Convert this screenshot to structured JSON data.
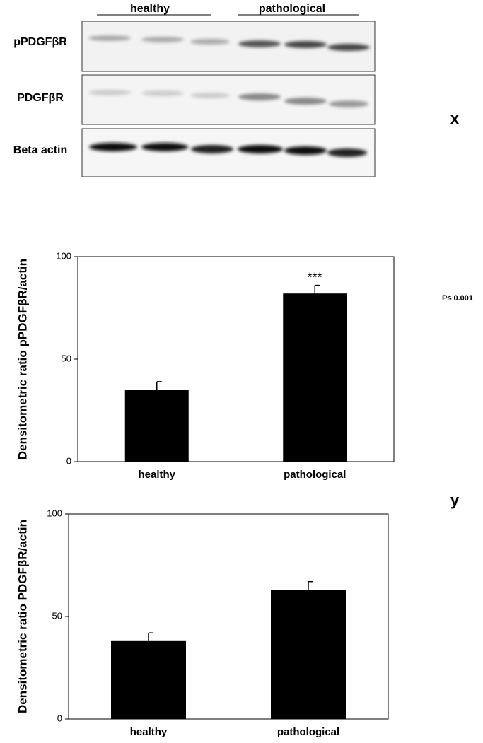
{
  "blot": {
    "groups": [
      "healthy",
      "pathological"
    ],
    "rows": [
      "pPDGFβR",
      "PDGFβR",
      "Beta actin"
    ]
  },
  "panel_labels": [
    "x",
    "y"
  ],
  "note": "P≤ 0.001",
  "chart_data": [
    {
      "type": "bar",
      "ylabel": "Densitometric ratio pPDGFβR/actin",
      "categories": [
        "healthy",
        "pathological"
      ],
      "values": [
        35,
        82
      ],
      "errors": [
        4,
        4
      ],
      "color": "#000000",
      "annotations": [
        "***"
      ],
      "ylim": [
        0,
        100
      ],
      "yticks": [
        0,
        50,
        100
      ]
    },
    {
      "type": "bar",
      "ylabel": "Densitometric ratio PDGFβR/actin",
      "categories": [
        "healthy",
        "pathological"
      ],
      "values": [
        38,
        63
      ],
      "errors": [
        4,
        4
      ],
      "color": "#000000",
      "ylim": [
        0,
        100
      ],
      "yticks": [
        0,
        50,
        100
      ]
    }
  ]
}
